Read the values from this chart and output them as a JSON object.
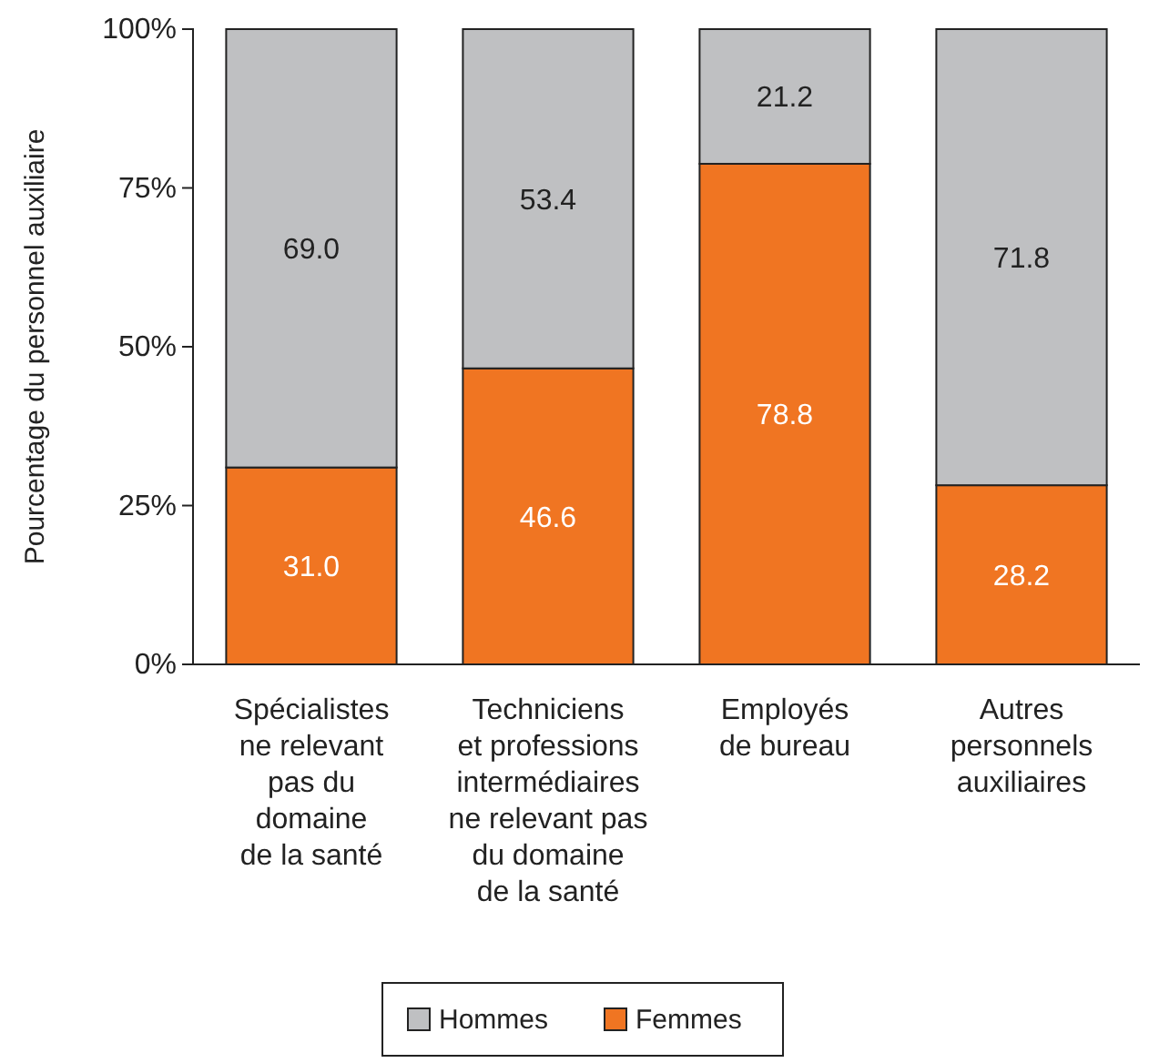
{
  "chart_data": {
    "type": "bar",
    "stacked": true,
    "ylabel": "Pourcentage du personnel auxiliaire",
    "categories": [
      "Spécialistes\nne relevant\npas du\ndomaine\nde la santé",
      "Techniciens\net professions\nintermédiaires\nne relevant pas\ndu domaine\nde la santé",
      "Employés\nde bureau",
      "Autres\npersonnels\nauxiliaires"
    ],
    "series": [
      {
        "name": "Femmes",
        "color": "#f07522",
        "values": [
          31.0,
          46.6,
          78.8,
          28.2
        ],
        "value_labels": [
          "31.0",
          "46.6",
          "78.8",
          "28.2"
        ]
      },
      {
        "name": "Hommes",
        "color": "#bfc0c2",
        "values": [
          69.0,
          53.4,
          21.2,
          71.8
        ],
        "value_labels": [
          "69.0",
          "53.4",
          "21.2",
          "71.8"
        ]
      }
    ],
    "ylim": [
      0,
      100
    ],
    "yticks": [
      {
        "value": 0,
        "label": "0%"
      },
      {
        "value": 25,
        "label": "25%"
      },
      {
        "value": 50,
        "label": "50%"
      },
      {
        "value": 75,
        "label": "75%"
      },
      {
        "value": 100,
        "label": "100%"
      }
    ],
    "grid": false,
    "legend": "bottom"
  }
}
